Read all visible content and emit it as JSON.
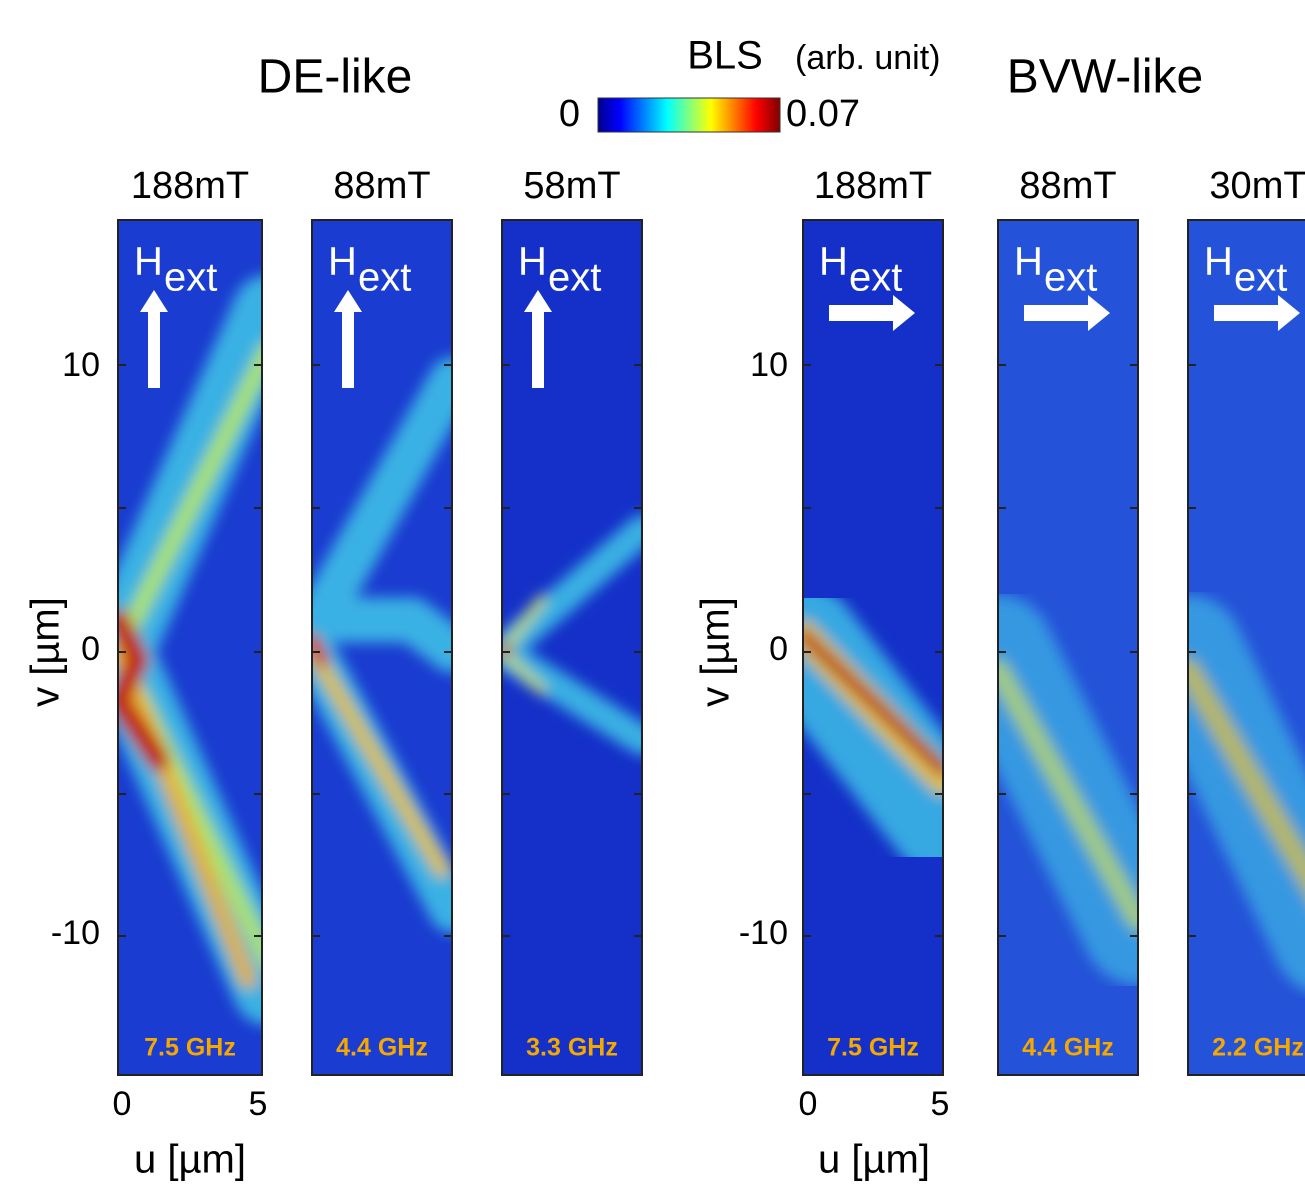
{
  "colorbar": {
    "title": "BLS",
    "unit": "(arb. unit)",
    "min_label": "0",
    "max_label": "0.07"
  },
  "groups": [
    {
      "title": "DE-like",
      "v_axis": {
        "label": "v [µm]",
        "ticks": [
          "10",
          "0",
          "-10"
        ]
      },
      "u_axis": {
        "label": "u [µm]",
        "ticks": [
          "0",
          "5"
        ]
      },
      "panels": [
        {
          "field": "188mT",
          "symbol": "H",
          "subscript": "ext",
          "frequency": "7.5 GHz"
        },
        {
          "field": "88mT",
          "symbol": "H",
          "subscript": "ext",
          "frequency": "4.4 GHz"
        },
        {
          "field": "58mT",
          "symbol": "H",
          "subscript": "ext",
          "frequency": "3.3 GHz"
        }
      ]
    },
    {
      "title": "BVW-like",
      "v_axis": {
        "label": "v [µm]",
        "ticks": [
          "10",
          "0",
          "-10"
        ]
      },
      "u_axis": {
        "label": "u [µm]",
        "ticks": [
          "0",
          "5"
        ]
      },
      "panels": [
        {
          "field": "188mT",
          "symbol": "H",
          "subscript": "ext",
          "frequency": "7.5 GHz"
        },
        {
          "field": "88mT",
          "symbol": "H",
          "subscript": "ext",
          "frequency": "4.4 GHz"
        },
        {
          "field": "30mT",
          "symbol": "H",
          "subscript": "ext",
          "frequency": "2.2 GHz"
        }
      ]
    }
  ]
}
